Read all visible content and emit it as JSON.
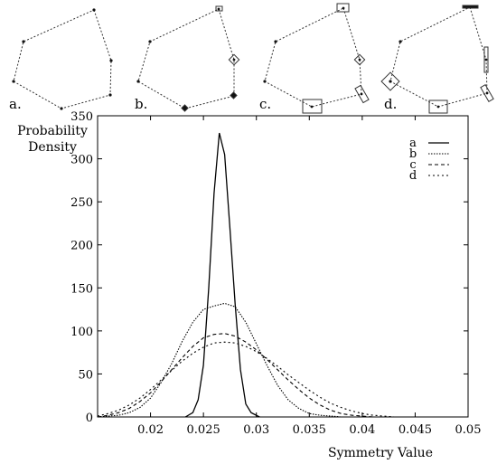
{
  "polygons": {
    "panel_labels": [
      "a.",
      "b.",
      "c.",
      "d."
    ]
  },
  "chart_data": {
    "type": "line",
    "title": "",
    "ylabel": "Probability\nDensity",
    "xlabel": "Symmetry Value",
    "xlim": [
      0.015,
      0.05
    ],
    "ylim": [
      0,
      350
    ],
    "xticks": [
      0.02,
      0.025,
      0.03,
      0.035,
      0.04,
      0.045,
      0.05
    ],
    "xtick_labels": [
      "0.02",
      "0.025",
      "0.03",
      "0.035",
      "0.04",
      "0.045",
      "0.05"
    ],
    "yticks": [
      0,
      50,
      100,
      150,
      200,
      250,
      300,
      350
    ],
    "ytick_labels": [
      "0",
      "50",
      "100",
      "150",
      "200",
      "250",
      "300",
      "350"
    ],
    "grid": false,
    "legend_position": "top-right",
    "series": [
      {
        "name": "a",
        "style": "solid",
        "x": [
          0.0233,
          0.024,
          0.0245,
          0.025,
          0.0255,
          0.026,
          0.0265,
          0.027,
          0.0275,
          0.028,
          0.0285,
          0.029,
          0.0295,
          0.0303
        ],
        "y": [
          0,
          5,
          20,
          60,
          150,
          260,
          330,
          305,
          220,
          130,
          55,
          15,
          5,
          0
        ]
      },
      {
        "name": "b",
        "style": "dotted",
        "x": [
          0.015,
          0.016,
          0.017,
          0.018,
          0.019,
          0.02,
          0.021,
          0.022,
          0.023,
          0.024,
          0.025,
          0.026,
          0.027,
          0.028,
          0.029,
          0.03,
          0.031,
          0.032,
          0.033,
          0.034,
          0.035,
          0.036,
          0.037,
          0.038
        ],
        "y": [
          0,
          1,
          2,
          5,
          11,
          22,
          40,
          62,
          88,
          110,
          125,
          129,
          132,
          128,
          110,
          85,
          60,
          37,
          20,
          10,
          4,
          2,
          1,
          0
        ]
      },
      {
        "name": "c",
        "style": "dashed",
        "x": [
          0.015,
          0.016,
          0.017,
          0.018,
          0.019,
          0.02,
          0.021,
          0.022,
          0.023,
          0.024,
          0.025,
          0.026,
          0.027,
          0.028,
          0.029,
          0.03,
          0.031,
          0.032,
          0.033,
          0.034,
          0.035,
          0.036,
          0.037,
          0.038,
          0.039,
          0.04,
          0.041
        ],
        "y": [
          0,
          2,
          5,
          10,
          18,
          28,
          41,
          55,
          69,
          82,
          92,
          96,
          97,
          94,
          87,
          78,
          67,
          55,
          43,
          32,
          22,
          14,
          8,
          4,
          2,
          1,
          0
        ]
      },
      {
        "name": "d",
        "style": "dotted",
        "x": [
          0.015,
          0.016,
          0.017,
          0.018,
          0.019,
          0.02,
          0.021,
          0.022,
          0.023,
          0.024,
          0.025,
          0.026,
          0.027,
          0.028,
          0.029,
          0.03,
          0.031,
          0.032,
          0.033,
          0.034,
          0.035,
          0.036,
          0.037,
          0.038,
          0.039,
          0.04,
          0.041,
          0.042,
          0.043
        ],
        "y": [
          1,
          4,
          8,
          14,
          22,
          32,
          43,
          54,
          65,
          74,
          81,
          86,
          87,
          86,
          82,
          76,
          68,
          59,
          49,
          40,
          31,
          23,
          16,
          11,
          7,
          4,
          2,
          1,
          0
        ]
      }
    ]
  }
}
